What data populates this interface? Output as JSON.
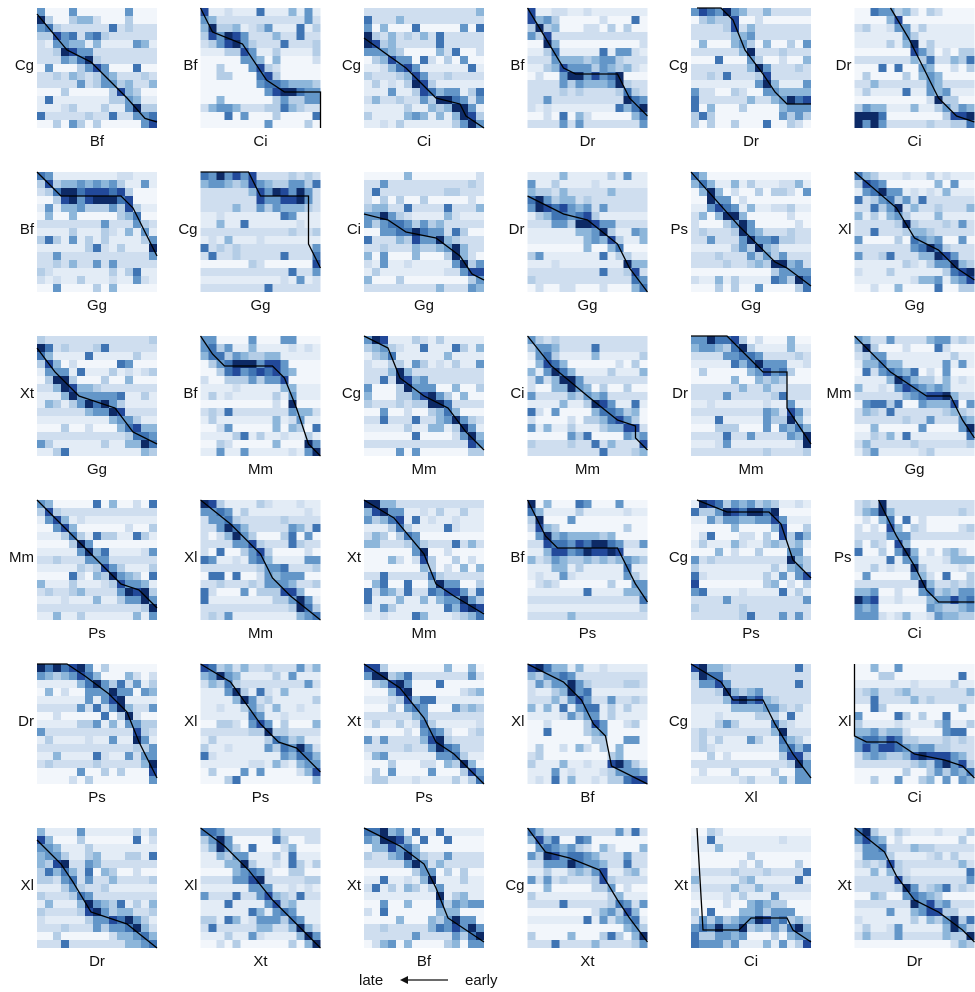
{
  "figure": {
    "palette": [
      "#f2f6fb",
      "#e3ecf6",
      "#cfdeef",
      "#b4cde6",
      "#8db6da",
      "#6396c8",
      "#3f74b3",
      "#22499a",
      "#0d2a66"
    ],
    "path_color": "#000000",
    "legend": {
      "late": "late",
      "early": "early"
    }
  },
  "chart_data": {
    "type": "heatmap",
    "description_of_marks": "6x6 grid of heatmap alignment matrices with an overlaid black monotone alignment path; y label = species on the left, x label = species below",
    "panels": [
      {
        "ylabel": "Cg",
        "xlabel": "Bf",
        "path": [
          [
            0,
            0.05
          ],
          [
            0.25,
            0.35
          ],
          [
            0.45,
            0.45
          ],
          [
            0.6,
            0.6
          ],
          [
            0.75,
            0.75
          ],
          [
            0.9,
            0.92
          ],
          [
            1,
            0.95
          ]
        ]
      },
      {
        "ylabel": "Bf",
        "xlabel": "Ci",
        "path": [
          [
            0,
            0
          ],
          [
            0.1,
            0.2
          ],
          [
            0.35,
            0.3
          ],
          [
            0.55,
            0.6
          ],
          [
            0.7,
            0.7
          ],
          [
            1,
            0.7
          ],
          [
            1,
            1
          ]
        ]
      },
      {
        "ylabel": "Cg",
        "xlabel": "Ci",
        "path": [
          [
            0,
            0.25
          ],
          [
            0.35,
            0.5
          ],
          [
            0.5,
            0.65
          ],
          [
            0.6,
            0.75
          ],
          [
            0.8,
            0.8
          ],
          [
            0.85,
            0.9
          ],
          [
            1,
            1
          ]
        ]
      },
      {
        "ylabel": "Bf",
        "xlabel": "Dr",
        "path": [
          [
            0,
            0
          ],
          [
            0.3,
            0.5
          ],
          [
            0.4,
            0.55
          ],
          [
            0.75,
            0.55
          ],
          [
            0.85,
            0.75
          ],
          [
            1,
            0.9
          ]
        ]
      },
      {
        "ylabel": "Cg",
        "xlabel": "Dr",
        "path": [
          [
            0.05,
            0
          ],
          [
            0.25,
            0
          ],
          [
            0.35,
            0.1
          ],
          [
            0.45,
            0.35
          ],
          [
            0.6,
            0.55
          ],
          [
            0.7,
            0.7
          ],
          [
            0.8,
            0.8
          ],
          [
            1,
            0.8
          ]
        ]
      },
      {
        "ylabel": "Dr",
        "xlabel": "Ci",
        "path": [
          [
            0.3,
            0
          ],
          [
            0.45,
            0.25
          ],
          [
            0.6,
            0.55
          ],
          [
            0.7,
            0.75
          ],
          [
            0.85,
            0.9
          ],
          [
            1,
            0.95
          ]
        ]
      },
      {
        "ylabel": "Bf",
        "xlabel": "Gg",
        "path": [
          [
            0,
            0
          ],
          [
            0.2,
            0.2
          ],
          [
            0.7,
            0.2
          ],
          [
            0.8,
            0.3
          ],
          [
            0.9,
            0.5
          ],
          [
            1,
            0.7
          ]
        ]
      },
      {
        "ylabel": "Cg",
        "xlabel": "Gg",
        "path": [
          [
            0,
            0
          ],
          [
            0.4,
            0
          ],
          [
            0.5,
            0.2
          ],
          [
            0.9,
            0.2
          ],
          [
            0.9,
            0.6
          ],
          [
            1,
            0.8
          ]
        ]
      },
      {
        "ylabel": "Ci",
        "xlabel": "Gg",
        "path": [
          [
            0,
            0.35
          ],
          [
            0.2,
            0.4
          ],
          [
            0.35,
            0.5
          ],
          [
            0.6,
            0.55
          ],
          [
            0.8,
            0.7
          ],
          [
            0.9,
            0.85
          ],
          [
            1,
            0.9
          ]
        ]
      },
      {
        "ylabel": "Dr",
        "xlabel": "Gg",
        "path": [
          [
            0,
            0.2
          ],
          [
            0.3,
            0.35
          ],
          [
            0.5,
            0.4
          ],
          [
            0.75,
            0.6
          ],
          [
            0.85,
            0.8
          ],
          [
            1,
            1
          ]
        ]
      },
      {
        "ylabel": "Ps",
        "xlabel": "Gg",
        "path": [
          [
            0,
            0
          ],
          [
            0.4,
            0.45
          ],
          [
            0.7,
            0.75
          ],
          [
            0.8,
            0.8
          ],
          [
            1,
            0.95
          ]
        ]
      },
      {
        "ylabel": "Xl",
        "xlabel": "Gg",
        "path": [
          [
            0,
            0
          ],
          [
            0.35,
            0.3
          ],
          [
            0.5,
            0.55
          ],
          [
            0.7,
            0.65
          ],
          [
            0.85,
            0.8
          ],
          [
            1,
            0.9
          ]
        ]
      },
      {
        "ylabel": "Xt",
        "xlabel": "Gg",
        "path": [
          [
            0,
            0.1
          ],
          [
            0.15,
            0.3
          ],
          [
            0.35,
            0.5
          ],
          [
            0.65,
            0.6
          ],
          [
            0.8,
            0.8
          ],
          [
            1,
            0.9
          ]
        ]
      },
      {
        "ylabel": "Bf",
        "xlabel": "Mm",
        "path": [
          [
            0,
            0
          ],
          [
            0.1,
            0.15
          ],
          [
            0.2,
            0.25
          ],
          [
            0.6,
            0.25
          ],
          [
            0.7,
            0.35
          ],
          [
            0.8,
            0.6
          ],
          [
            0.9,
            0.9
          ],
          [
            1,
            1
          ]
        ]
      },
      {
        "ylabel": "Cg",
        "xlabel": "Mm",
        "path": [
          [
            0,
            0
          ],
          [
            0.2,
            0.1
          ],
          [
            0.3,
            0.35
          ],
          [
            0.5,
            0.5
          ],
          [
            0.7,
            0.6
          ],
          [
            0.85,
            0.8
          ],
          [
            1,
            0.95
          ]
        ]
      },
      {
        "ylabel": "Ci",
        "xlabel": "Mm",
        "path": [
          [
            0,
            0
          ],
          [
            0.2,
            0.25
          ],
          [
            0.5,
            0.5
          ],
          [
            0.75,
            0.7
          ],
          [
            0.9,
            0.75
          ],
          [
            0.9,
            0.85
          ],
          [
            1,
            0.95
          ]
        ]
      },
      {
        "ylabel": "Dr",
        "xlabel": "Mm",
        "path": [
          [
            0,
            0
          ],
          [
            0.3,
            0
          ],
          [
            0.5,
            0.2
          ],
          [
            0.6,
            0.3
          ],
          [
            0.8,
            0.3
          ],
          [
            0.8,
            0.6
          ],
          [
            1,
            0.9
          ]
        ]
      },
      {
        "ylabel": "Mm",
        "xlabel": "Gg",
        "path": [
          [
            0,
            0
          ],
          [
            0.3,
            0.3
          ],
          [
            0.6,
            0.5
          ],
          [
            0.8,
            0.5
          ],
          [
            0.9,
            0.7
          ],
          [
            1,
            0.85
          ]
        ]
      },
      {
        "ylabel": "Mm",
        "xlabel": "Ps",
        "path": [
          [
            0,
            0
          ],
          [
            0.35,
            0.35
          ],
          [
            0.55,
            0.55
          ],
          [
            0.7,
            0.7
          ],
          [
            0.85,
            0.75
          ],
          [
            1,
            0.9
          ]
        ]
      },
      {
        "ylabel": "Xl",
        "xlabel": "Mm",
        "path": [
          [
            0,
            0
          ],
          [
            0.25,
            0.2
          ],
          [
            0.5,
            0.45
          ],
          [
            0.6,
            0.65
          ],
          [
            0.75,
            0.8
          ],
          [
            1,
            1
          ]
        ]
      },
      {
        "ylabel": "Xt",
        "xlabel": "Mm",
        "path": [
          [
            0,
            0
          ],
          [
            0.25,
            0.15
          ],
          [
            0.5,
            0.45
          ],
          [
            0.6,
            0.7
          ],
          [
            0.75,
            0.8
          ],
          [
            1,
            0.95
          ]
        ]
      },
      {
        "ylabel": "Bf",
        "xlabel": "Ps",
        "path": [
          [
            0,
            0
          ],
          [
            0.15,
            0.3
          ],
          [
            0.25,
            0.4
          ],
          [
            0.75,
            0.4
          ],
          [
            0.9,
            0.7
          ],
          [
            1,
            0.85
          ]
        ]
      },
      {
        "ylabel": "Cg",
        "xlabel": "Ps",
        "path": [
          [
            0.05,
            0
          ],
          [
            0.3,
            0.1
          ],
          [
            0.65,
            0.1
          ],
          [
            0.75,
            0.2
          ],
          [
            0.85,
            0.5
          ],
          [
            1,
            0.65
          ]
        ]
      },
      {
        "ylabel": "Ps",
        "xlabel": "Ci",
        "path": [
          [
            0.2,
            0
          ],
          [
            0.35,
            0.3
          ],
          [
            0.5,
            0.55
          ],
          [
            0.6,
            0.75
          ],
          [
            0.7,
            0.85
          ],
          [
            1,
            0.85
          ]
        ]
      },
      {
        "ylabel": "Dr",
        "xlabel": "Ps",
        "path": [
          [
            0,
            0
          ],
          [
            0.25,
            0
          ],
          [
            0.4,
            0.1
          ],
          [
            0.6,
            0.25
          ],
          [
            0.75,
            0.4
          ],
          [
            0.85,
            0.65
          ],
          [
            1,
            0.95
          ]
        ]
      },
      {
        "ylabel": "Xl",
        "xlabel": "Ps",
        "path": [
          [
            0,
            0
          ],
          [
            0.25,
            0.15
          ],
          [
            0.5,
            0.5
          ],
          [
            0.65,
            0.65
          ],
          [
            0.8,
            0.7
          ],
          [
            1,
            0.9
          ]
        ]
      },
      {
        "ylabel": "Xt",
        "xlabel": "Ps",
        "path": [
          [
            0,
            0
          ],
          [
            0.3,
            0.2
          ],
          [
            0.5,
            0.45
          ],
          [
            0.6,
            0.65
          ],
          [
            0.75,
            0.75
          ],
          [
            1,
            1
          ]
        ]
      },
      {
        "ylabel": "Xl",
        "xlabel": "Bf",
        "path": [
          [
            0,
            0
          ],
          [
            0.3,
            0.15
          ],
          [
            0.45,
            0.3
          ],
          [
            0.55,
            0.5
          ],
          [
            0.65,
            0.6
          ],
          [
            0.7,
            0.85
          ],
          [
            1,
            1
          ]
        ]
      },
      {
        "ylabel": "Cg",
        "xlabel": "Xl",
        "path": [
          [
            0,
            0
          ],
          [
            0.25,
            0.15
          ],
          [
            0.35,
            0.3
          ],
          [
            0.6,
            0.3
          ],
          [
            0.7,
            0.5
          ],
          [
            0.85,
            0.75
          ],
          [
            1,
            0.95
          ]
        ]
      },
      {
        "ylabel": "Xl",
        "xlabel": "Ci",
        "path": [
          [
            0,
            0
          ],
          [
            0,
            0.6
          ],
          [
            0.1,
            0.65
          ],
          [
            0.35,
            0.65
          ],
          [
            0.5,
            0.75
          ],
          [
            0.75,
            0.8
          ],
          [
            0.9,
            0.85
          ],
          [
            1,
            0.95
          ]
        ]
      },
      {
        "ylabel": "Xl",
        "xlabel": "Dr",
        "path": [
          [
            0,
            0.1
          ],
          [
            0.2,
            0.3
          ],
          [
            0.3,
            0.45
          ],
          [
            0.45,
            0.7
          ],
          [
            0.75,
            0.8
          ],
          [
            1,
            1
          ]
        ]
      },
      {
        "ylabel": "Xl",
        "xlabel": "Xt",
        "path": [
          [
            0,
            0
          ],
          [
            0.2,
            0.15
          ],
          [
            0.4,
            0.35
          ],
          [
            0.6,
            0.6
          ],
          [
            0.8,
            0.8
          ],
          [
            1,
            1
          ]
        ]
      },
      {
        "ylabel": "Xt",
        "xlabel": "Bf",
        "path": [
          [
            0,
            0
          ],
          [
            0.3,
            0.15
          ],
          [
            0.5,
            0.3
          ],
          [
            0.6,
            0.5
          ],
          [
            0.7,
            0.75
          ],
          [
            0.85,
            0.85
          ],
          [
            1,
            0.95
          ]
        ]
      },
      {
        "ylabel": "Cg",
        "xlabel": "Xt",
        "path": [
          [
            0,
            0
          ],
          [
            0.15,
            0.2
          ],
          [
            0.35,
            0.25
          ],
          [
            0.6,
            0.35
          ],
          [
            0.75,
            0.6
          ],
          [
            0.85,
            0.75
          ],
          [
            1,
            0.95
          ]
        ]
      },
      {
        "ylabel": "Xt",
        "xlabel": "Ci",
        "path": [
          [
            0.05,
            0
          ],
          [
            0.1,
            0.85
          ],
          [
            0.2,
            0.85
          ],
          [
            0.4,
            0.85
          ],
          [
            0.5,
            0.75
          ],
          [
            0.8,
            0.75
          ],
          [
            0.85,
            0.85
          ],
          [
            1,
            0.95
          ]
        ]
      },
      {
        "ylabel": "Xt",
        "xlabel": "Dr",
        "path": [
          [
            0,
            0
          ],
          [
            0.25,
            0.2
          ],
          [
            0.35,
            0.4
          ],
          [
            0.5,
            0.6
          ],
          [
            0.7,
            0.7
          ],
          [
            0.9,
            0.85
          ],
          [
            1,
            0.95
          ]
        ]
      }
    ]
  }
}
